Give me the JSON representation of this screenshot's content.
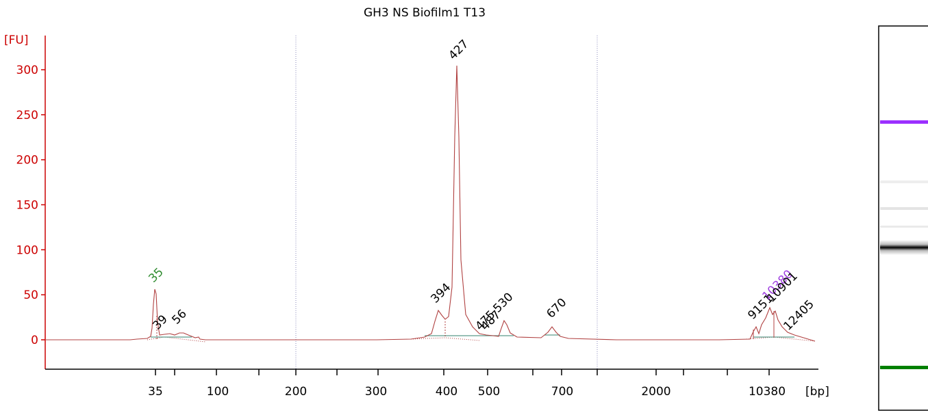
{
  "chart_data": {
    "type": "line",
    "title": "GH3 NS Biofilm1 T13",
    "ylabel": "[FU]",
    "xlabel": "[bp]",
    "ylim": [
      -30,
      320
    ],
    "yticks": [
      0,
      50,
      100,
      150,
      200,
      250,
      300
    ],
    "xticks": [
      "35",
      "100",
      "200",
      "300",
      "400",
      "500",
      "700",
      "2000",
      "10380"
    ],
    "peaks": [
      {
        "label": "35",
        "fu": 56,
        "color": "#2e8b2e"
      },
      {
        "label": "39",
        "fu": 4,
        "color": "#000000"
      },
      {
        "label": "56",
        "fu": 6,
        "color": "#000000"
      },
      {
        "label": "394",
        "fu": 33,
        "color": "#000000"
      },
      {
        "label": "427",
        "fu": 303,
        "color": "#000000"
      },
      {
        "label": "475",
        "fu": 5,
        "color": "#000000"
      },
      {
        "label": "487",
        "fu": 5,
        "color": "#000000"
      },
      {
        "label": "530",
        "fu": 22,
        "color": "#000000"
      },
      {
        "label": "670",
        "fu": 16,
        "color": "#000000"
      },
      {
        "label": "9151",
        "fu": 17,
        "color": "#000000"
      },
      {
        "label": "10380",
        "fu": 35,
        "color": "#a040e0"
      },
      {
        "label": "10901",
        "fu": 30,
        "color": "#000000"
      },
      {
        "label": "12405",
        "fu": 9,
        "color": "#000000"
      }
    ],
    "series_color": "#b04040",
    "axis_color": "#cc0000"
  },
  "gel": {
    "upper_marker_color": "#9b30ff",
    "lower_marker_color": "#008000"
  }
}
